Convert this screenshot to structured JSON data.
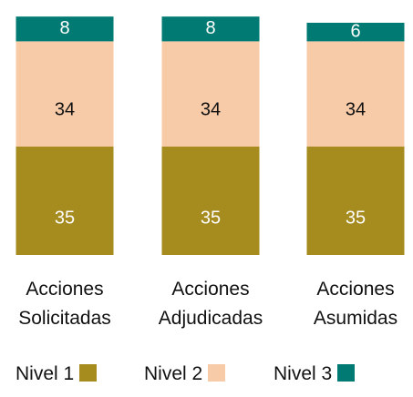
{
  "chart_data": {
    "type": "stacked_bar",
    "categories": [
      "Acciones Solicitadas",
      "Acciones Adjudicadas",
      "Acciones Asumidas"
    ],
    "series": [
      {
        "name": "Nivel 1",
        "color": "#a68b1e",
        "values": [
          35,
          35,
          35
        ]
      },
      {
        "name": "Nivel 2",
        "color": "#f8cba8",
        "values": [
          34,
          34,
          34
        ]
      },
      {
        "name": "Nivel 3",
        "color": "#007a73",
        "values": [
          8,
          8,
          6
        ]
      }
    ]
  }
}
